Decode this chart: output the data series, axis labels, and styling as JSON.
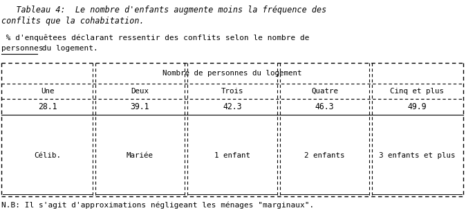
{
  "title_line1": "   Tableau 4:  Le nombre d'enfants augmente moins la fréquence des",
  "title_line2": "conflits que la cohabitation.",
  "subtitle_line1": " % d'enquêtees déclarant ressentir des conflits selon le nombre de",
  "subtitle_line2": "personnes du logement.",
  "subtitle_line2_plain": " du logement.",
  "subtitle_underline": "personnes",
  "table_header": "Nombre de personnes du logement",
  "columns": [
    "Une",
    "Deux",
    "Trois",
    "Quatre",
    "Cinq et plus"
  ],
  "values": [
    "28.1",
    "39.1",
    "42.3",
    "46.3",
    "49.9"
  ],
  "subtitles": [
    "Célib.",
    "Mariée",
    "1 enfant",
    "2 enfants",
    "3 enfants et plus"
  ],
  "footnote": "N.B: Il s'agit d'approximations négligeant les ménages \"marginaux\".",
  "bg_color": "#ffffff",
  "text_color": "#000000"
}
